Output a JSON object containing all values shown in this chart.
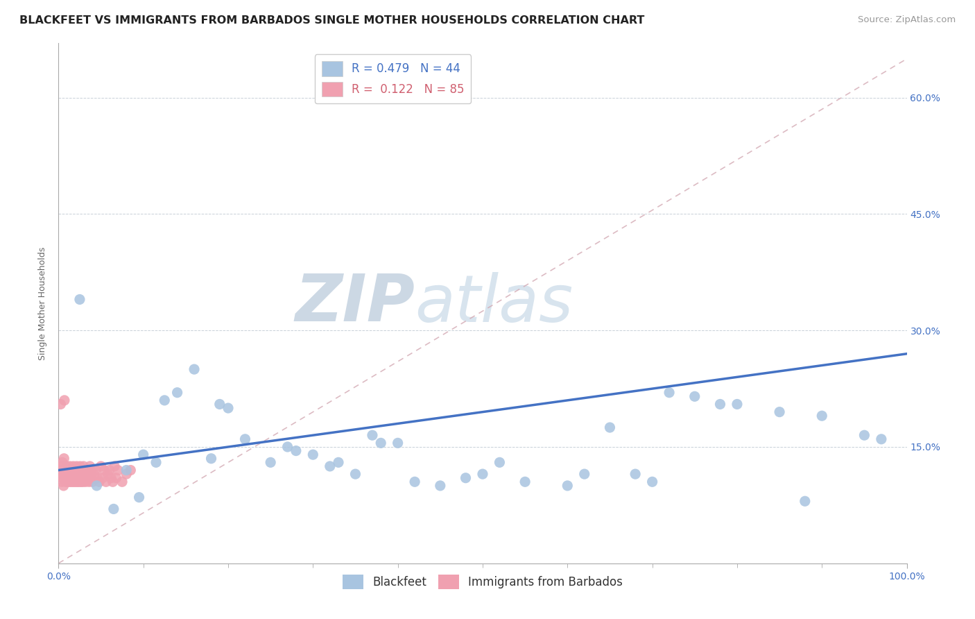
{
  "title": "BLACKFEET VS IMMIGRANTS FROM BARBADOS SINGLE MOTHER HOUSEHOLDS CORRELATION CHART",
  "source": "Source: ZipAtlas.com",
  "ylabel": "Single Mother Households",
  "xlim": [
    0.0,
    100.0
  ],
  "ylim": [
    0.0,
    67.0
  ],
  "yticks": [
    0.0,
    15.0,
    30.0,
    45.0,
    60.0
  ],
  "ytick_labels_right": [
    "",
    "15.0%",
    "30.0%",
    "45.0%",
    "60.0%"
  ],
  "xtick_labels": [
    "0.0%",
    "100.0%"
  ],
  "xtick_vals": [
    0.0,
    100.0
  ],
  "blackfeet_R": 0.479,
  "blackfeet_N": 44,
  "barbados_R": 0.122,
  "barbados_N": 85,
  "blackfeet_color": "#a8c4e0",
  "barbados_color": "#f0a0b0",
  "trend_line_color": "#4472c4",
  "ref_line_color": "#d4aab4",
  "background_color": "#ffffff",
  "watermark_zip": "ZIP",
  "watermark_atlas": "atlas",
  "watermark_color": "#ccd8e4",
  "trend_start_y": 12.0,
  "trend_end_y": 27.0,
  "ref_start_y": 0.0,
  "ref_end_y": 65.0,
  "blackfeet_x": [
    2.5,
    4.5,
    6.5,
    8.0,
    9.5,
    10.0,
    11.5,
    12.5,
    14.0,
    16.0,
    18.0,
    19.0,
    20.0,
    22.0,
    25.0,
    27.0,
    28.0,
    30.0,
    32.0,
    33.0,
    35.0,
    37.0,
    38.0,
    40.0,
    42.0,
    45.0,
    48.0,
    50.0,
    52.0,
    55.0,
    60.0,
    62.0,
    65.0,
    68.0,
    70.0,
    72.0,
    75.0,
    78.0,
    80.0,
    85.0,
    88.0,
    90.0,
    95.0,
    97.0
  ],
  "blackfeet_y": [
    34.0,
    10.0,
    7.0,
    12.0,
    8.5,
    14.0,
    13.0,
    21.0,
    22.0,
    25.0,
    13.5,
    20.5,
    20.0,
    16.0,
    13.0,
    15.0,
    14.5,
    14.0,
    12.5,
    13.0,
    11.5,
    16.5,
    15.5,
    15.5,
    10.5,
    10.0,
    11.0,
    11.5,
    13.0,
    10.5,
    10.0,
    11.5,
    17.5,
    11.5,
    10.5,
    22.0,
    21.5,
    20.5,
    20.5,
    19.5,
    8.0,
    19.0,
    16.5,
    16.0
  ],
  "barbados_x": [
    0.2,
    0.25,
    0.3,
    0.35,
    0.4,
    0.45,
    0.5,
    0.55,
    0.6,
    0.65,
    0.7,
    0.75,
    0.8,
    0.85,
    0.9,
    0.95,
    1.0,
    1.05,
    1.1,
    1.15,
    1.2,
    1.25,
    1.3,
    1.35,
    1.4,
    1.45,
    1.5,
    1.55,
    1.6,
    1.65,
    1.7,
    1.75,
    1.8,
    1.85,
    1.9,
    1.95,
    2.0,
    2.05,
    2.1,
    2.15,
    2.2,
    2.25,
    2.3,
    2.35,
    2.4,
    2.45,
    2.5,
    2.55,
    2.6,
    2.65,
    2.7,
    2.75,
    2.8,
    2.85,
    2.9,
    2.95,
    3.0,
    3.1,
    3.2,
    3.3,
    3.4,
    3.5,
    3.6,
    3.7,
    3.8,
    3.9,
    4.0,
    4.2,
    4.4,
    4.6,
    4.8,
    5.0,
    5.2,
    5.4,
    5.6,
    5.8,
    6.0,
    6.2,
    6.4,
    6.6,
    6.8,
    7.0,
    7.5,
    8.0,
    8.5
  ],
  "barbados_y": [
    12.0,
    20.5,
    11.5,
    12.5,
    10.5,
    13.0,
    11.0,
    12.0,
    10.0,
    13.5,
    21.0,
    11.5,
    12.0,
    10.5,
    11.0,
    12.5,
    11.0,
    12.0,
    10.5,
    11.5,
    12.0,
    11.0,
    10.5,
    12.5,
    11.0,
    12.0,
    10.5,
    11.5,
    12.0,
    11.0,
    10.5,
    12.5,
    11.0,
    12.0,
    10.5,
    11.5,
    12.0,
    11.0,
    10.5,
    12.5,
    11.0,
    12.0,
    10.5,
    11.5,
    12.0,
    11.0,
    10.5,
    12.5,
    11.0,
    12.0,
    10.5,
    11.5,
    12.0,
    11.0,
    10.5,
    12.5,
    11.0,
    12.0,
    10.5,
    11.5,
    12.0,
    11.0,
    10.5,
    12.5,
    11.0,
    12.0,
    10.5,
    11.5,
    12.0,
    11.0,
    10.5,
    12.5,
    11.0,
    12.0,
    10.5,
    11.5,
    12.0,
    11.0,
    10.5,
    12.5,
    11.0,
    12.0,
    10.5,
    11.5,
    12.0
  ],
  "title_fontsize": 11.5,
  "axis_label_fontsize": 9,
  "tick_fontsize": 10,
  "legend_fontsize": 12,
  "source_fontsize": 9.5
}
